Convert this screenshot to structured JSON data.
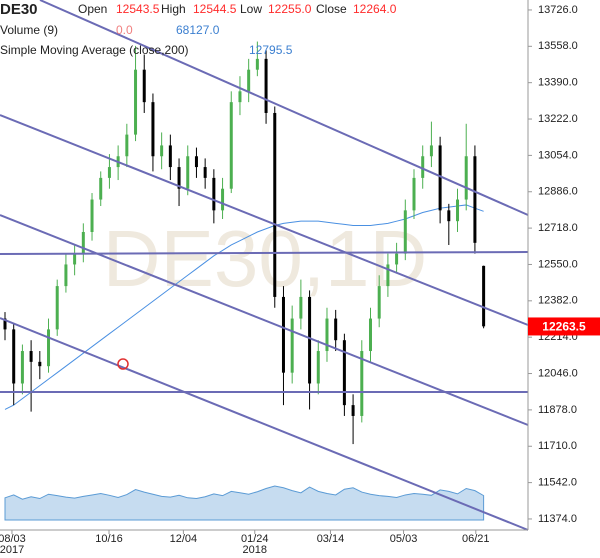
{
  "header": {
    "symbol": "DE30",
    "open_label": "Open",
    "open": "12543.5",
    "high_label": "High",
    "high": "12544.5",
    "low_label": "Low",
    "low": "12255.0",
    "close_label": "Close",
    "close": "12264.0",
    "volume_label": "Volume (9)",
    "volume_a": "0.0",
    "volume_b": "68127.0",
    "sma_label": "Simple Moving Average (close,200)",
    "sma_value": "12795.5"
  },
  "chart_data": {
    "type": "candlestick",
    "watermark": "DE30,1D",
    "up_color": "#4caf50",
    "down_color": "#000000",
    "ohlc": [
      [
        12300,
        12330,
        12200,
        12250
      ],
      [
        12250,
        12280,
        11900,
        12000
      ],
      [
        12000,
        12180,
        11950,
        12150
      ],
      [
        12150,
        12200,
        11870,
        12100
      ],
      [
        12100,
        12150,
        12020,
        12080
      ],
      [
        12080,
        12300,
        12050,
        12250
      ],
      [
        12250,
        12480,
        12220,
        12450
      ],
      [
        12450,
        12600,
        12420,
        12550
      ],
      [
        12550,
        12640,
        12500,
        12600
      ],
      [
        12600,
        12740,
        12560,
        12700
      ],
      [
        12700,
        12880,
        12660,
        12850
      ],
      [
        12850,
        12980,
        12820,
        12950
      ],
      [
        12950,
        13060,
        12900,
        13000
      ],
      [
        13000,
        13100,
        12940,
        13050
      ],
      [
        13050,
        13200,
        13000,
        13150
      ],
      [
        13150,
        13560,
        13120,
        13450
      ],
      [
        13450,
        13520,
        13250,
        13300
      ],
      [
        13300,
        13340,
        12980,
        13050
      ],
      [
        13050,
        13160,
        12990,
        13100
      ],
      [
        13100,
        13150,
        12940,
        13000
      ],
      [
        13000,
        13040,
        12820,
        12900
      ],
      [
        12900,
        13100,
        12870,
        13050
      ],
      [
        13050,
        13090,
        12950,
        13000
      ],
      [
        13000,
        13040,
        12900,
        12950
      ],
      [
        12950,
        12990,
        12740,
        12800
      ],
      [
        12800,
        12950,
        12760,
        12900
      ],
      [
        12900,
        13350,
        12880,
        13300
      ],
      [
        13300,
        13420,
        13240,
        13350
      ],
      [
        13350,
        13500,
        13300,
        13450
      ],
      [
        13450,
        13580,
        13420,
        13500
      ],
      [
        13500,
        13540,
        13200,
        13250
      ],
      [
        13250,
        13280,
        12350,
        12400
      ],
      [
        12400,
        12450,
        11900,
        12050
      ],
      [
        12050,
        12360,
        12000,
        12300
      ],
      [
        12300,
        12480,
        12250,
        12400
      ],
      [
        12400,
        12430,
        11880,
        12000
      ],
      [
        12000,
        12200,
        11950,
        12150
      ],
      [
        12150,
        12350,
        12100,
        12300
      ],
      [
        12300,
        12340,
        12150,
        12200
      ],
      [
        12200,
        12230,
        11850,
        11900
      ],
      [
        11900,
        11950,
        11720,
        11850
      ],
      [
        11850,
        12200,
        11820,
        12150
      ],
      [
        12150,
        12350,
        12100,
        12300
      ],
      [
        12300,
        12500,
        12260,
        12450
      ],
      [
        12450,
        12600,
        12400,
        12550
      ],
      [
        12550,
        12650,
        12510,
        12600
      ],
      [
        12600,
        12850,
        12570,
        12800
      ],
      [
        12800,
        12990,
        12760,
        12950
      ],
      [
        12950,
        13100,
        12900,
        13050
      ],
      [
        13050,
        13210,
        13000,
        13100
      ],
      [
        13100,
        13140,
        12740,
        12800
      ],
      [
        12800,
        12830,
        12640,
        12750
      ],
      [
        12750,
        12900,
        12700,
        12850
      ],
      [
        12850,
        13200,
        12800,
        13050
      ],
      [
        13050,
        13100,
        12600,
        12650
      ],
      [
        12543.5,
        12544.5,
        12255,
        12264
      ]
    ],
    "volume": {
      "color": "#5b9bd5",
      "values": [
        62000,
        70000,
        58000,
        65000,
        60000,
        72000,
        68000,
        64000,
        61000,
        66000,
        70000,
        74000,
        69000,
        63000,
        71000,
        85000,
        78000,
        72000,
        66000,
        64000,
        69000,
        62000,
        60000,
        65000,
        73000,
        68000,
        80000,
        76000,
        72000,
        79000,
        88000,
        95000,
        90000,
        82000,
        76000,
        92000,
        80000,
        74000,
        70000,
        86000,
        90000,
        78000,
        72000,
        68000,
        66000,
        63000,
        70000,
        74000,
        72000,
        69000,
        84000,
        80000,
        73000,
        88000,
        82000,
        68127
      ]
    },
    "sma": {
      "color": "#4a90e2",
      "values": [
        11880,
        11900,
        11930,
        11960,
        11990,
        12020,
        12050,
        12080,
        12110,
        12140,
        12170,
        12200,
        12230,
        12260,
        12290,
        12320,
        12350,
        12380,
        12410,
        12440,
        12470,
        12500,
        12530,
        12560,
        12590,
        12615,
        12640,
        12660,
        12680,
        12700,
        12715,
        12730,
        12740,
        12745,
        12750,
        12750,
        12750,
        12745,
        12740,
        12735,
        12730,
        12730,
        12730,
        12735,
        12740,
        12750,
        12760,
        12775,
        12790,
        12800,
        12810,
        12815,
        12820,
        12825,
        12810,
        12795.5
      ]
    },
    "ylim": [
      11323,
      13772
    ],
    "yticks": [
      {
        "value": 13726,
        "label": "13726.0"
      },
      {
        "value": 13558,
        "label": "13558.0"
      },
      {
        "value": 13390,
        "label": "13390.0"
      },
      {
        "value": 13222,
        "label": "13222.0"
      },
      {
        "value": 13054,
        "label": "13054.0"
      },
      {
        "value": 12886,
        "label": "12886.0"
      },
      {
        "value": 12718,
        "label": "12718.0"
      },
      {
        "value": 12550,
        "label": "12550.0"
      },
      {
        "value": 12382,
        "label": "12382.0"
      },
      {
        "value": 12214,
        "label": "12214.0"
      },
      {
        "value": 12046,
        "label": "12046.0"
      },
      {
        "value": 11878,
        "label": "11878.0"
      },
      {
        "value": 11710,
        "label": "11710.0"
      },
      {
        "value": 11542,
        "label": "11542.0"
      },
      {
        "value": 11374,
        "label": "11374.0"
      }
    ],
    "xlim": [
      -0.575,
      60.1
    ],
    "xticks": [
      {
        "value": 0.8,
        "label": "08/03"
      },
      {
        "value": 11.95,
        "label": "10/16"
      },
      {
        "value": 20.5,
        "label": "12/04"
      },
      {
        "value": 28.7,
        "label": "01/24"
      },
      {
        "value": 37.4,
        "label": "03/14"
      },
      {
        "value": 45.8,
        "label": "05/03"
      },
      {
        "value": 54.1,
        "label": "06/21"
      }
    ],
    "year_labels": [
      {
        "value": 0.8,
        "label": "2017"
      },
      {
        "value": 28.7,
        "label": "2018"
      }
    ],
    "last_price": {
      "value": 12263.5,
      "label": "12263.5",
      "color": "#ff0000"
    }
  }
}
